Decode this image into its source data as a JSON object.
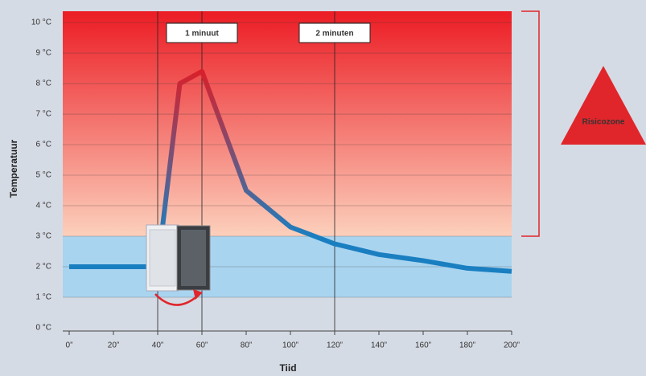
{
  "chart_data": {
    "type": "line",
    "x_label": "Tiid",
    "y_label": "Temperatuur",
    "x": [
      0,
      40,
      50,
      60,
      80,
      100,
      120,
      140,
      160,
      180,
      200
    ],
    "series": [
      {
        "values": [
          2.0,
          2.0,
          8.0,
          8.4,
          4.5,
          3.3,
          2.75,
          2.4,
          2.2,
          1.95,
          1.85
        ],
        "color": "#1a7fc1",
        "hot_color": "#d8202a"
      }
    ],
    "xlim": [
      0,
      200
    ],
    "xticks": [
      {
        "value": 0,
        "label": "0”"
      },
      {
        "value": 20,
        "label": "20”"
      },
      {
        "value": 40,
        "label": "40”"
      },
      {
        "value": 60,
        "label": "60”"
      },
      {
        "value": 80,
        "label": "80”"
      },
      {
        "value": 100,
        "label": "100”"
      },
      {
        "value": 120,
        "label": "120”"
      },
      {
        "value": 140,
        "label": "140”"
      },
      {
        "value": 160,
        "label": "160”"
      },
      {
        "value": 180,
        "label": "180”"
      },
      {
        "value": 200,
        "label": "200”"
      }
    ],
    "ylim": [
      0,
      10.37
    ],
    "yticks": [
      {
        "value": 0,
        "label": "0 °C"
      },
      {
        "value": 1,
        "label": "1 °C"
      },
      {
        "value": 2,
        "label": "2 °C"
      },
      {
        "value": 3,
        "label": "3 °C"
      },
      {
        "value": 4,
        "label": "4 °C"
      },
      {
        "value": 5,
        "label": "5 °C"
      },
      {
        "value": 6,
        "label": "6 °C"
      },
      {
        "value": 7,
        "label": "7 °C"
      },
      {
        "value": 8,
        "label": "8 °C"
      },
      {
        "value": 9,
        "label": "9 °C"
      },
      {
        "value": 10,
        "label": "10 °C"
      }
    ],
    "grid": true,
    "vlines": [
      40,
      60,
      120
    ],
    "markers": [
      {
        "x": 60,
        "label": "1 minuut"
      },
      {
        "x": 120,
        "label": "2 minuten"
      }
    ],
    "zones": [
      {
        "from": 1,
        "to": 3,
        "color": "#a9d4ef"
      },
      {
        "from": 3,
        "to": 10.37,
        "color": "#ec1c24",
        "fade_color": "#fcd0bc"
      }
    ],
    "risk_zone": {
      "label": "Risicozone",
      "from": 3,
      "to": 10.37,
      "color": "#e0262b"
    }
  }
}
